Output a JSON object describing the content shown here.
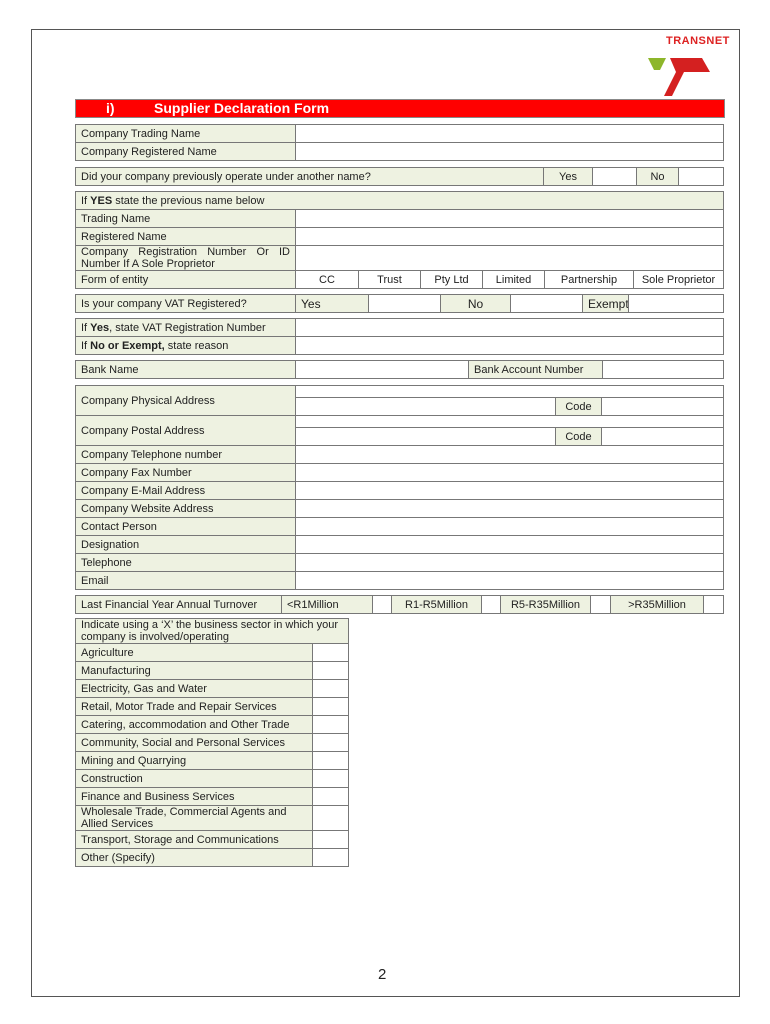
{
  "logo": {
    "text": "TRANSNET",
    "colors": {
      "green": "#8db62a",
      "red": "#d42020"
    }
  },
  "header": {
    "number": "i)",
    "title": "Supplier Declaration Form",
    "color": "#ff0000"
  },
  "company": {
    "trading_name": "Company Trading Name",
    "registered_name": "Company Registered Name"
  },
  "previous_name": {
    "question": "Did your company previously operate under another name?",
    "yes": "Yes",
    "no": "No"
  },
  "previous": {
    "intro_prefix": "If ",
    "intro_bold": "YES",
    "intro_suffix": " state the previous name below",
    "trading_name": "Trading Name",
    "registered_name": "Registered Name",
    "reg_number": "Company Registration Number Or ID Number If A Sole Proprietor",
    "form_of_entity": "Form of entity",
    "entities": [
      "CC",
      "Trust",
      "Pty Ltd",
      "Limited",
      "Partnership",
      "Sole Proprietor"
    ]
  },
  "vat": {
    "question": "Is your company VAT Registered?",
    "yes": "Yes",
    "no": "No",
    "exempt": "Exempt",
    "reg_prefix": "If ",
    "reg_bold": "Yes",
    "reg_suffix": ", state VAT Registration Number",
    "reason_prefix": "If ",
    "reason_bold": "No or Exempt,",
    "reason_suffix": " state reason"
  },
  "bank": {
    "name": "Bank Name",
    "account": "Bank Account Number"
  },
  "address": {
    "physical": "Company Physical Address",
    "postal": "Company Postal Address",
    "code": "Code",
    "telephone": "Company Telephone number",
    "fax": "Company Fax Number",
    "email": "Company E-Mail Address",
    "website": "Company Website Address"
  },
  "contact": {
    "person": "Contact Person",
    "designation": "Designation",
    "telephone": "Telephone",
    "email": "Email"
  },
  "turnover": {
    "label": "Last Financial Year Annual Turnover",
    "options": [
      "<R1Million",
      "R1-R5Million",
      "R5-R35Million",
      ">R35Million"
    ]
  },
  "sectors": {
    "intro": "Indicate using a ‘X’ the business sector in which your company is involved/operating",
    "items": [
      "Agriculture",
      "Manufacturing",
      "Electricity, Gas and Water",
      "Retail, Motor Trade and Repair Services",
      "Catering, accommodation and Other Trade",
      "Community, Social and Personal Services",
      "Mining and Quarrying",
      "Construction",
      "Finance and Business Services",
      "Wholesale Trade, Commercial Agents and Allied Services",
      "Transport, Storage and Communications",
      "Other (Specify)"
    ]
  },
  "page_number": "2"
}
